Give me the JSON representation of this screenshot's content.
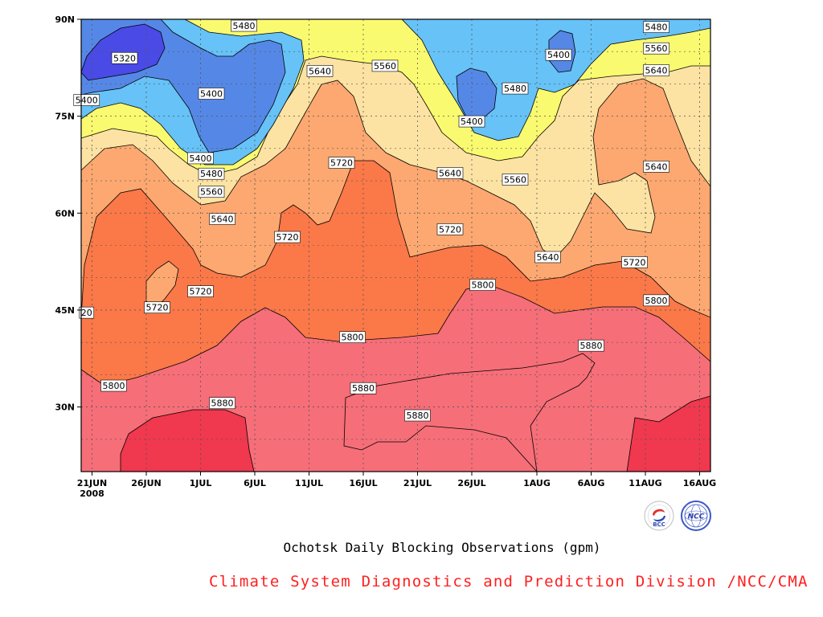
{
  "chart_data": {
    "type": "contour",
    "title": "Ochotsk Daily Blocking Observations (gpm)",
    "x_ticks": [
      {
        "date": "2008-06-21",
        "label": "21JUN",
        "sublabel": "2008"
      },
      {
        "date": "2008-06-26",
        "label": "26JUN"
      },
      {
        "date": "2008-07-01",
        "label": "1JUL"
      },
      {
        "date": "2008-07-06",
        "label": "6JUL"
      },
      {
        "date": "2008-07-11",
        "label": "11JUL"
      },
      {
        "date": "2008-07-16",
        "label": "16JUL"
      },
      {
        "date": "2008-07-21",
        "label": "21JUL"
      },
      {
        "date": "2008-07-26",
        "label": "26JUL"
      },
      {
        "date": "2008-08-01",
        "label": "1AUG"
      },
      {
        "date": "2008-08-06",
        "label": "6AUG"
      },
      {
        "date": "2008-08-11",
        "label": "11AUG"
      },
      {
        "date": "2008-08-16",
        "label": "16AUG"
      }
    ],
    "xlim": [
      "2008-06-20",
      "2008-08-17"
    ],
    "y_ticks": [
      {
        "lat": 30,
        "label": "30N"
      },
      {
        "lat": 45,
        "label": "45N"
      },
      {
        "lat": 60,
        "label": "60N"
      },
      {
        "lat": 75,
        "label": "75N"
      },
      {
        "lat": 90,
        "label": "90N"
      }
    ],
    "ylim": [
      20,
      90
    ],
    "contour_levels": [
      5320,
      5400,
      5480,
      5560,
      5640,
      5720,
      5800,
      5880
    ],
    "level_colors": [
      "#4a4ae6",
      "#5588e6",
      "#66c2f7",
      "#fafa70",
      "#fde3a3",
      "#fca870",
      "#fb7848",
      "#f66e78",
      "#f0384e"
    ],
    "grid": true,
    "contour_labels": [
      {
        "text": "5480",
        "date": "2008-07-05",
        "lat": 89
      },
      {
        "text": "5320",
        "date": "2008-06-24",
        "lat": 84
      },
      {
        "text": "5400",
        "date": "2008-06-20.5",
        "lat": 77.5
      },
      {
        "text": "5400",
        "date": "2008-07-02",
        "lat": 78.5
      },
      {
        "text": "5640",
        "date": "2008-07-12",
        "lat": 82
      },
      {
        "text": "5560",
        "date": "2008-07-18",
        "lat": 82.8
      },
      {
        "text": "5400",
        "date": "2008-07-26",
        "lat": 74.2
      },
      {
        "text": "5480",
        "date": "2008-07-30",
        "lat": 79.3
      },
      {
        "text": "5400",
        "date": "2008-08-03",
        "lat": 84.5
      },
      {
        "text": "5480",
        "date": "2008-08-12",
        "lat": 88.8
      },
      {
        "text": "5560",
        "date": "2008-08-12",
        "lat": 85.5
      },
      {
        "text": "5640",
        "date": "2008-08-12",
        "lat": 82.1
      },
      {
        "text": "5400",
        "date": "2008-07-01",
        "lat": 68.5
      },
      {
        "text": "5480",
        "date": "2008-07-02",
        "lat": 66.1
      },
      {
        "text": "5560",
        "date": "2008-07-02",
        "lat": 63.3
      },
      {
        "text": "5720",
        "date": "2008-07-14",
        "lat": 67.8
      },
      {
        "text": "5640",
        "date": "2008-07-24",
        "lat": 66.2
      },
      {
        "text": "5560",
        "date": "2008-07-30",
        "lat": 65.2
      },
      {
        "text": "5640",
        "date": "2008-08-12",
        "lat": 67.2
      },
      {
        "text": "5640",
        "date": "2008-07-03",
        "lat": 59.1
      },
      {
        "text": "5720",
        "date": "2008-07-09",
        "lat": 56.3
      },
      {
        "text": "5720",
        "date": "2008-07-24",
        "lat": 57.5
      },
      {
        "text": "5640",
        "date": "2008-08-02",
        "lat": 53.2
      },
      {
        "text": "5720",
        "date": "2008-08-10",
        "lat": 52.4
      },
      {
        "text": "5720",
        "date": "2008-07-01",
        "lat": 47.9
      },
      {
        "text": "5720",
        "date": "2008-06-27",
        "lat": 45.4
      },
      {
        "text": "20",
        "date": "2008-06-20.5",
        "lat": 44.6
      },
      {
        "text": "5800",
        "date": "2008-07-27",
        "lat": 48.9
      },
      {
        "text": "5800",
        "date": "2008-08-12",
        "lat": 46.5
      },
      {
        "text": "5800",
        "date": "2008-07-15",
        "lat": 40.8
      },
      {
        "text": "5880",
        "date": "2008-08-06",
        "lat": 39.5
      },
      {
        "text": "5800",
        "date": "2008-06-23",
        "lat": 33.3
      },
      {
        "text": "5880",
        "date": "2008-07-16",
        "lat": 32.9
      },
      {
        "text": "5880",
        "date": "2008-07-03",
        "lat": 30.6
      },
      {
        "text": "5880",
        "date": "2008-07-21",
        "lat": 28.7
      }
    ]
  },
  "footer": {
    "caption": "Ochotsk Daily Blocking Observations (gpm)",
    "credit": "Climate System Diagnostics and Prediction Division /NCC/CMA",
    "logo_bcc_text": "BCC",
    "logo_ncc_text": "NCC"
  }
}
